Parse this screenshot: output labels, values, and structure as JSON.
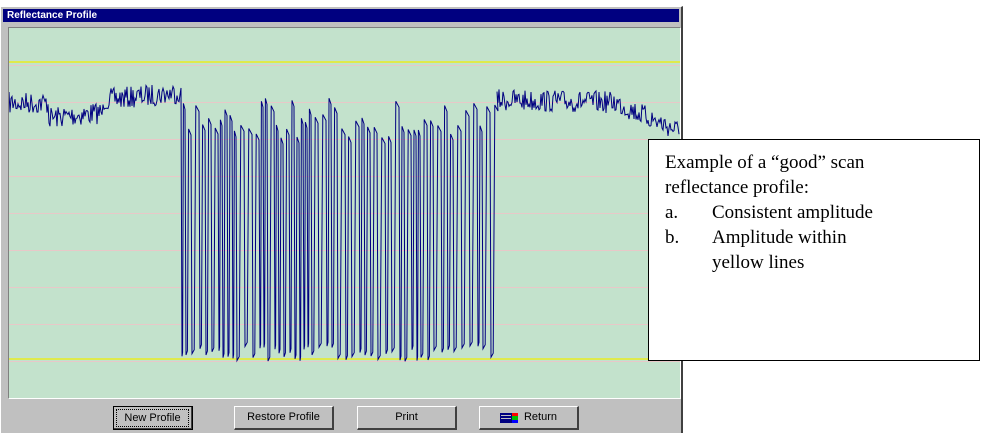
{
  "window": {
    "title": "Reflectance Profile"
  },
  "colors": {
    "plot_bg": "#c3e2cc",
    "trace": "#000080",
    "threshold": "#f0f000",
    "grid": "#e8c8c8"
  },
  "buttons": {
    "new_profile": "New Profile",
    "restore_profile": "Restore Profile",
    "print": "Print",
    "return": "Return"
  },
  "annotation": {
    "line1": "Example of a “good” scan",
    "line2": "reflectance profile:",
    "items": [
      {
        "marker": "a.",
        "text": "Consistent amplitude"
      },
      {
        "marker": "b.",
        "text": "Amplitude within"
      }
    ],
    "continuation": "yellow lines"
  }
}
